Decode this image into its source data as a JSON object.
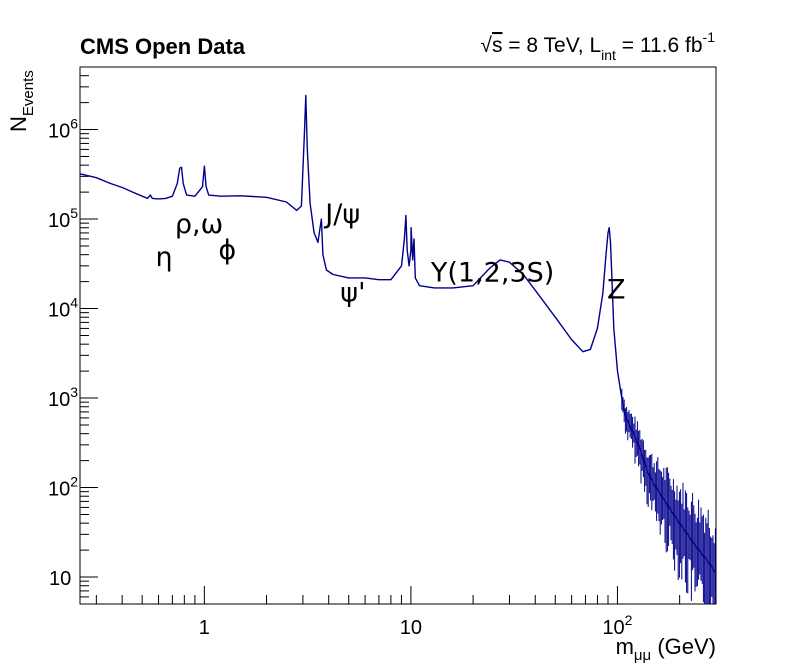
{
  "chart_data": {
    "type": "line",
    "title": "CMS Open Data",
    "subtitle": {
      "sqrt": "√",
      "s": "s",
      "eq": " = 8 TeV, L",
      "lsub": "int",
      "eq2": " = 11.6 fb",
      "sup": "-1"
    },
    "xlabel": {
      "main": "m",
      "sub": "μμ",
      "unit": " (GeV)"
    },
    "ylabel": {
      "main": "N",
      "sub": "Events"
    },
    "xscale": "log",
    "yscale": "log",
    "xlim": [
      0.25,
      300
    ],
    "ylim": [
      5,
      5000000
    ],
    "grid": false,
    "x_tick_labels": [
      {
        "value": 1,
        "base": "1",
        "exp": ""
      },
      {
        "value": 10,
        "base": "10",
        "exp": ""
      },
      {
        "value": 100,
        "base": "10",
        "exp": "2"
      }
    ],
    "y_tick_labels": [
      {
        "value": 10,
        "base": "10",
        "exp": ""
      },
      {
        "value": 100,
        "base": "10",
        "exp": "2"
      },
      {
        "value": 1000,
        "base": "10",
        "exp": "3"
      },
      {
        "value": 10000,
        "base": "10",
        "exp": "4"
      },
      {
        "value": 100000,
        "base": "10",
        "exp": "5"
      },
      {
        "value": 1000000,
        "base": "10",
        "exp": "6"
      }
    ],
    "series": [
      {
        "color": "#00008b",
        "x": [
          0.25,
          0.3,
          0.35,
          0.4,
          0.45,
          0.5,
          0.53,
          0.548,
          0.56,
          0.6,
          0.65,
          0.7,
          0.74,
          0.76,
          0.775,
          0.79,
          0.82,
          0.9,
          0.98,
          1.0,
          1.02,
          1.05,
          1.2,
          1.5,
          2.0,
          2.5,
          2.8,
          2.95,
          3.05,
          3.097,
          3.15,
          3.25,
          3.4,
          3.55,
          3.6,
          3.686,
          3.75,
          3.9,
          4.2,
          5.0,
          6.0,
          7.0,
          8.0,
          9.0,
          9.3,
          9.46,
          9.6,
          9.8,
          10.0,
          10.023,
          10.2,
          10.355,
          10.5,
          11.0,
          13.0,
          16.0,
          20.0,
          24.0,
          27.0,
          30.0,
          35.0,
          40.0,
          50.0,
          60.0,
          68.0,
          74.0,
          80.0,
          85.0,
          88.0,
          90.0,
          91.2,
          92.5,
          94.0,
          96.0,
          100.0,
          105.0,
          110.0,
          120.0,
          130.0,
          140.0,
          150.0,
          170.0,
          200.0,
          240.0,
          280.0,
          300.0
        ],
        "y": [
          320000,
          290000,
          250000,
          225000,
          200000,
          180000,
          170000,
          185000,
          170000,
          168000,
          170000,
          180000,
          250000,
          370000,
          380000,
          250000,
          185000,
          180000,
          230000,
          390000,
          230000,
          185000,
          180000,
          182000,
          175000,
          155000,
          125000,
          140000,
          900000,
          2400000,
          600000,
          150000,
          70000,
          55000,
          70000,
          100000,
          40000,
          27000,
          24000,
          22000,
          22000,
          21000,
          21000,
          30000,
          60000,
          110000,
          45000,
          30000,
          45000,
          80000,
          35000,
          60000,
          22000,
          18000,
          17000,
          17000,
          18000,
          28000,
          35000,
          33000,
          24000,
          16000,
          8000,
          4500,
          3300,
          3500,
          6000,
          15000,
          40000,
          70000,
          80000,
          55000,
          22000,
          6000,
          2000,
          1000,
          600,
          400,
          250,
          150,
          110,
          70,
          40,
          22,
          14,
          11
        ]
      }
    ],
    "annotations": [
      {
        "text": "η",
        "x": 0.58,
        "y": 30000
      },
      {
        "text": "ρ,ω",
        "x": 0.72,
        "y": 70000
      },
      {
        "text": "ϕ",
        "x": 1.17,
        "y": 36000
      },
      {
        "text": "J/ψ",
        "x": 3.85,
        "y": 90000
      },
      {
        "text": "ψ'",
        "x": 4.55,
        "y": 12000
      },
      {
        "text": "Υ(1,2,3S)",
        "x": 12.5,
        "y": 20000
      },
      {
        "text": "Z",
        "x": 89,
        "y": 13000
      }
    ]
  }
}
